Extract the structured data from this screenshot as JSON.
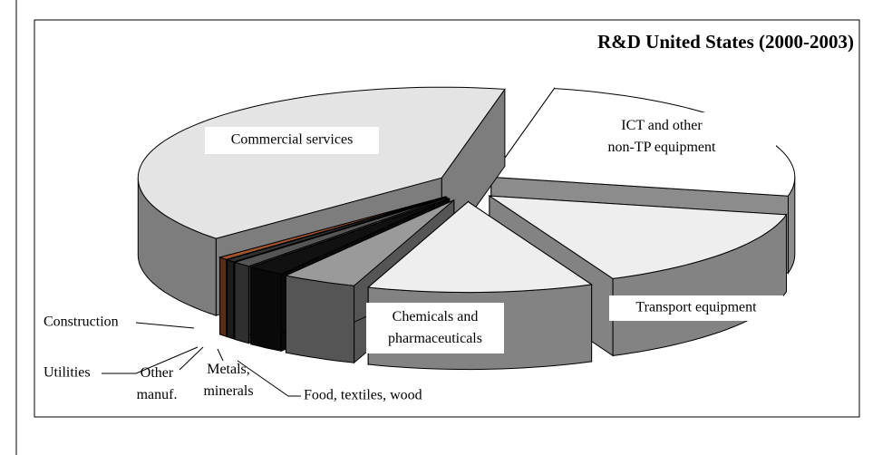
{
  "chart_data": {
    "type": "pie3d",
    "title": "R&D United States (2000-2003)",
    "categories": [
      "ICT and other\nnon-TP equipment",
      "Transport equipment",
      "Chemicals and\npharmaceuticals",
      "Food, textiles, wood",
      "Metals,\nminerals",
      "Other\nmanuf.",
      "Utilities",
      "Construction",
      "Commercial services"
    ],
    "values": [
      25,
      15,
      12,
      4,
      2,
      1,
      0.5,
      0.5,
      40
    ],
    "colors": [
      "#ffffff",
      "#eeeeee",
      "#eeeeee",
      "#9a9a9a",
      "#111111",
      "#555555",
      "#333333",
      "#a0522d",
      "#e4e4e4"
    ]
  }
}
